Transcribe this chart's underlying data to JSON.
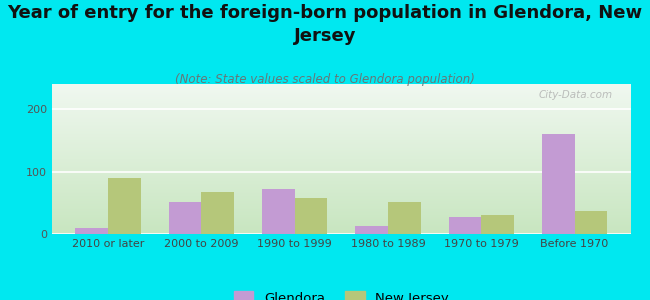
{
  "title": "Year of entry for the foreign-born population in Glendora, New\nJersey",
  "subtitle": "(Note: State values scaled to Glendora population)",
  "categories": [
    "2010 or later",
    "2000 to 2009",
    "1990 to 1999",
    "1980 to 1989",
    "1970 to 1979",
    "Before 1970"
  ],
  "glendora_values": [
    10,
    52,
    72,
    13,
    27,
    160
  ],
  "nj_values": [
    90,
    68,
    57,
    52,
    30,
    37
  ],
  "glendora_color": "#c39bd3",
  "nj_color": "#b5c77a",
  "background_color": "#00e8f0",
  "ylim": [
    0,
    240
  ],
  "yticks": [
    0,
    100,
    200
  ],
  "bar_width": 0.35,
  "title_fontsize": 13,
  "subtitle_fontsize": 8.5,
  "tick_fontsize": 8,
  "legend_fontsize": 9.5,
  "watermark": "City-Data.com"
}
